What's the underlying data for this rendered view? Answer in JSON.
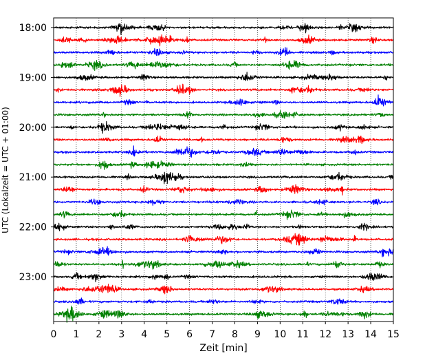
{
  "chart_data": {
    "type": "line",
    "chart_kind": "helicorder seismogram",
    "xlabel": "Zeit  [min]",
    "ylabel": "UTC (Lokalzeit = UTC + 01:00)",
    "xlim": [
      0,
      15
    ],
    "x_ticks": [
      0,
      1,
      2,
      3,
      4,
      5,
      6,
      7,
      8,
      9,
      10,
      11,
      12,
      13,
      14,
      15
    ],
    "x_grid": "dotted vertical lines at each minute",
    "y_tick_labels": [
      "18:00",
      "19:00",
      "20:00",
      "21:00",
      "22:00",
      "23:00"
    ],
    "trace_start_times": [
      "18:00",
      "18:15",
      "18:30",
      "18:45",
      "19:00",
      "19:15",
      "19:30",
      "19:45",
      "20:00",
      "20:15",
      "20:30",
      "20:45",
      "21:00",
      "21:15",
      "21:30",
      "21:45",
      "22:00",
      "22:15",
      "22:30",
      "22:45",
      "23:00",
      "23:15",
      "23:30",
      "23:45"
    ],
    "trace_colors": [
      "#000000",
      "#ff0000",
      "#0000ff",
      "#008000"
    ],
    "trace_duration_min": 15
  }
}
